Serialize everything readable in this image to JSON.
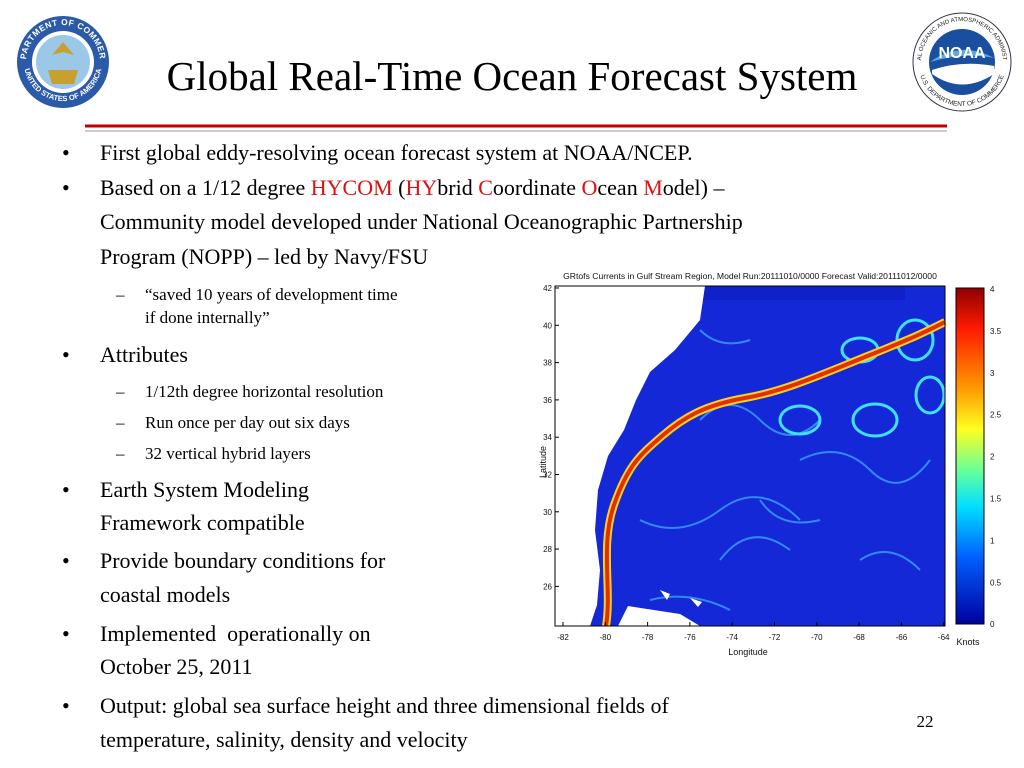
{
  "header": {
    "title": "Global Real-Time Ocean Forecast System",
    "left_logo": {
      "top_text": "DEPARTMENT OF COMMERCE",
      "bottom_text": "UNITED STATES OF AMERICA"
    },
    "right_logo": {
      "name": "NOAA",
      "top_text": "NATIONAL OCEANIC AND ATMOSPHERIC ADMINISTRATION",
      "bottom_text": "U.S. DEPARTMENT OF COMMERCE"
    }
  },
  "bullets": [
    {
      "marker": "•",
      "level": 1,
      "lines": [
        "First global eddy-resolving ocean forecast system at NOAA/NCEP."
      ]
    },
    {
      "marker": "•",
      "level": 1,
      "lines": [
        [
          {
            "text": "Based on a 1/12 degree "
          },
          {
            "text": "HYCOM",
            "color": "#e01010"
          },
          {
            "text": " ("
          },
          {
            "text": "HY",
            "color": "#e01010"
          },
          {
            "text": "brid "
          },
          {
            "text": "C",
            "color": "#e01010"
          },
          {
            "text": "oordinate "
          },
          {
            "text": "O",
            "color": "#e01010"
          },
          {
            "text": "cean "
          },
          {
            "text": "M",
            "color": "#e01010"
          },
          {
            "text": "odel) –"
          }
        ],
        "Community model developed under National Oceanographic Partnership",
        "Program (NOPP) – led by Navy/FSU"
      ]
    },
    {
      "marker": "–",
      "level": 2,
      "lines": [
        "“saved 10 years of development time",
        "if done internally”"
      ]
    },
    {
      "marker": "•",
      "level": 1,
      "lines": [
        "Attributes"
      ]
    },
    {
      "marker": "–",
      "level": 2,
      "lines": [
        "1/12th degree horizontal resolution"
      ]
    },
    {
      "marker": "–",
      "level": 2,
      "lines": [
        "Run once per day out six days"
      ]
    },
    {
      "marker": "–",
      "level": 2,
      "lines": [
        "32 vertical hybrid layers"
      ]
    },
    {
      "marker": "•",
      "level": 1,
      "lines": [
        "Earth System Modeling",
        "Framework compatible"
      ]
    },
    {
      "marker": "•",
      "level": 1,
      "lines": [
        "Provide boundary conditions for",
        "coastal models"
      ]
    },
    {
      "marker": "•",
      "level": 1,
      "lines": [
        "Implemented  operationally on",
        "October 25, 2011"
      ]
    },
    {
      "marker": "•",
      "level": 1,
      "lines": [
        "Output: global sea surface height and three dimensional fields of",
        "temperature, salinity, density and velocity"
      ]
    }
  ],
  "figure": {
    "title": "GRtofs Currents in Gulf Stream Region, Model Run:20111010/0000 Forecast Valid:20111012/0000",
    "x_label": "Longitude",
    "y_label": "Latitude",
    "colorbar_label": "Knots",
    "x_ticks": [
      "-82",
      "-80",
      "-78",
      "-76",
      "-74",
      "-72",
      "-70",
      "-68",
      "-66",
      "-64"
    ],
    "y_ticks": [
      "42",
      "40",
      "38",
      "36",
      "34",
      "32",
      "30",
      "28",
      "26"
    ],
    "colorbar_ticks": [
      "4",
      "3.5",
      "3",
      "2.5",
      "2",
      "1.5",
      "1",
      "0.5",
      "0"
    ]
  },
  "page_number": "22"
}
